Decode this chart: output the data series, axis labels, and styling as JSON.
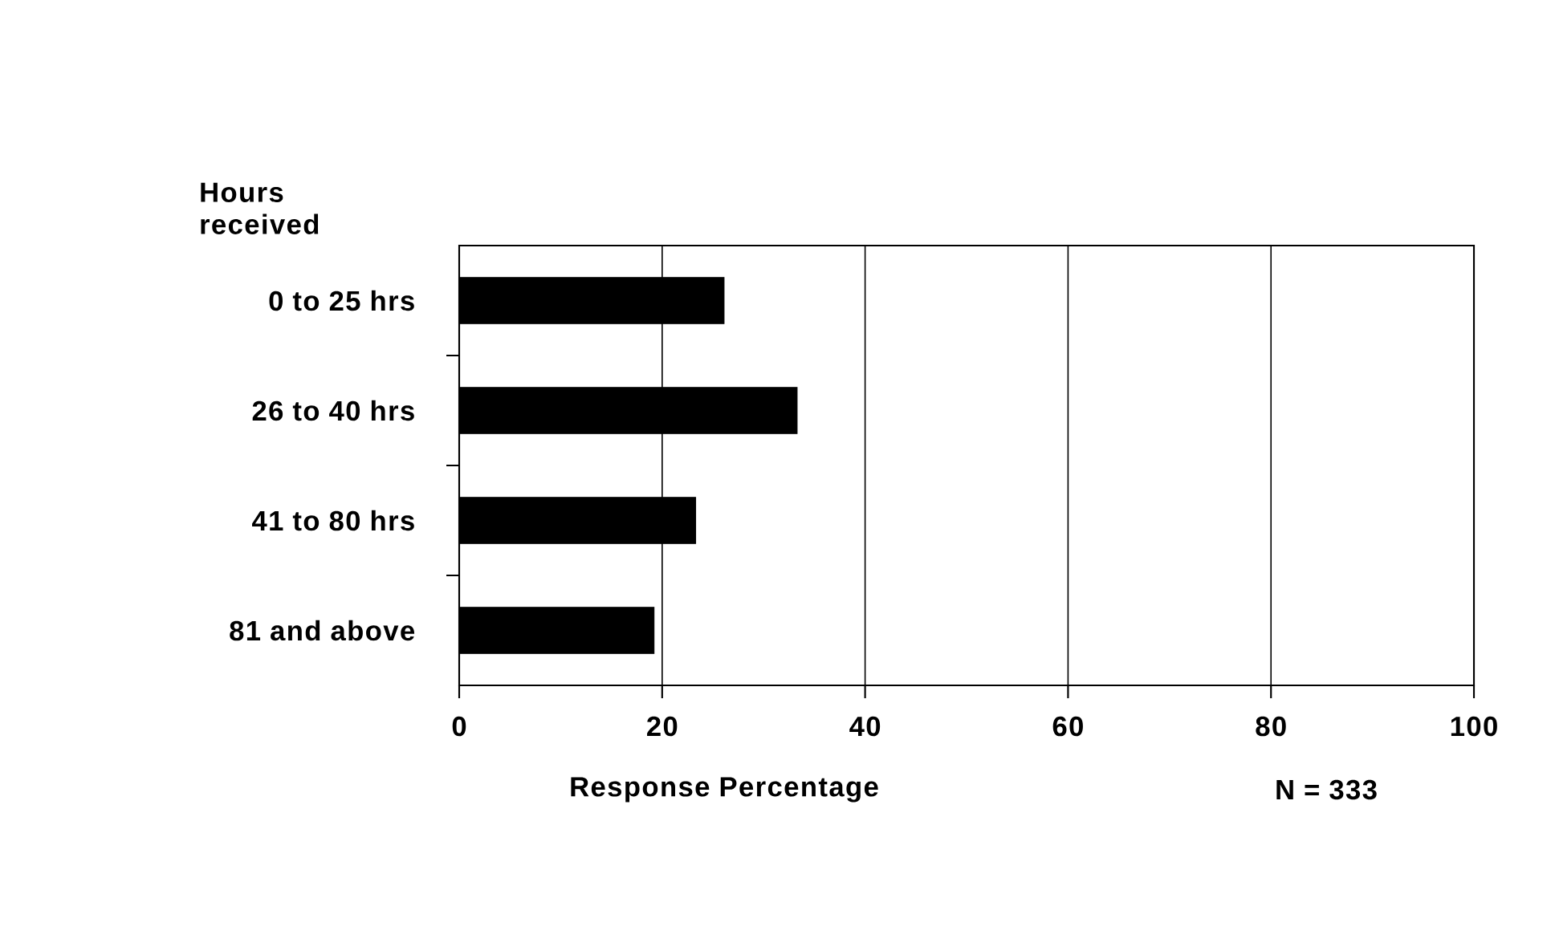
{
  "chart_data": {
    "type": "bar",
    "orientation": "horizontal",
    "categories": [
      "0 to 25 hrs",
      "26 to 40 hrs",
      "41 to 80 hrs",
      "81 and above"
    ],
    "values": [
      26.1,
      33.3,
      23.3,
      19.2
    ],
    "color": "#000000",
    "ylabel": "Hours received",
    "xlabel": "Response Percentage",
    "annotations": [
      "N = 333"
    ],
    "xlim": [
      0,
      100
    ],
    "xticks": [
      0,
      20,
      40,
      60,
      80,
      100
    ],
    "grid": "x"
  }
}
